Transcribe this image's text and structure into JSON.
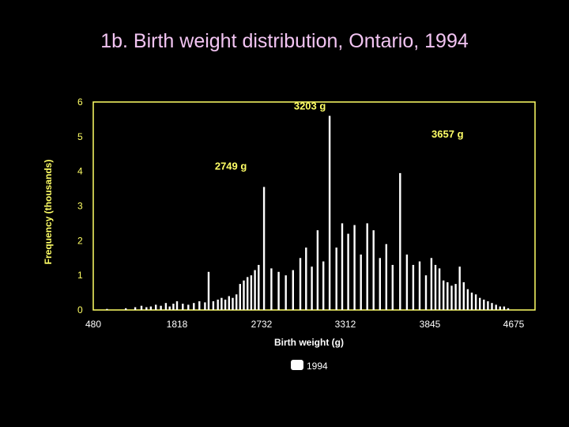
{
  "slide": {
    "title": "1b. Birth weight distribution, Ontario, 1994"
  },
  "colors": {
    "background": "#000000",
    "frame": "#ffff66",
    "text_yellow": "#ffff66",
    "bar": "#ffffff",
    "title": "#f2c4f2"
  },
  "chart_data": {
    "type": "bar",
    "title": "1b. Birth weight distribution, Ontario, 1994",
    "xlabel": "Birth weight (g)",
    "ylabel": "Frequency (thousands)",
    "ylim": [
      0,
      6
    ],
    "xlim": [
      480,
      4675
    ],
    "yticks": [
      "0",
      "1",
      "2",
      "3",
      "4",
      "5",
      "6"
    ],
    "xticks": [
      "480",
      "1818",
      "2732",
      "3312",
      "3845",
      "4675"
    ],
    "legend": {
      "position": "bottom",
      "entries": [
        "1994"
      ]
    },
    "annotations": [
      {
        "text": "3203 g",
        "x": 3203,
        "y": 5.55
      },
      {
        "text": "3657 g",
        "x": 3657,
        "y": 4.75
      },
      {
        "text": "2749 g",
        "x": 2749,
        "y": 4.05
      }
    ],
    "series": [
      {
        "name": "1994",
        "x": [
          700,
          1000,
          1150,
          1250,
          1330,
          1400,
          1480,
          1560,
          1640,
          1700,
          1760,
          1818,
          1880,
          1940,
          2000,
          2060,
          2120,
          2160,
          2210,
          2260,
          2300,
          2340,
          2380,
          2420,
          2460,
          2500,
          2540,
          2580,
          2620,
          2660,
          2700,
          2749,
          2800,
          2850,
          2900,
          2950,
          3000,
          3040,
          3080,
          3120,
          3160,
          3203,
          3250,
          3290,
          3330,
          3370,
          3410,
          3450,
          3490,
          3530,
          3570,
          3610,
          3657,
          3700,
          3740,
          3780,
          3820,
          3860,
          3900,
          3940,
          3980,
          4020,
          4060,
          4100,
          4140,
          4180,
          4220,
          4260,
          4300,
          4340,
          4380,
          4420,
          4460,
          4500,
          4540,
          4580,
          4620
        ],
        "y": [
          0.03,
          0.05,
          0.08,
          0.12,
          0.08,
          0.1,
          0.15,
          0.12,
          0.2,
          0.1,
          0.18,
          0.25,
          0.18,
          0.15,
          0.2,
          0.25,
          0.22,
          1.1,
          0.25,
          0.3,
          0.35,
          0.3,
          0.4,
          0.35,
          0.45,
          0.75,
          0.85,
          0.95,
          1.0,
          1.15,
          1.3,
          3.55,
          1.2,
          1.1,
          1.0,
          1.15,
          1.5,
          1.8,
          1.25,
          2.3,
          1.4,
          5.6,
          1.8,
          2.5,
          2.2,
          2.45,
          1.6,
          2.5,
          2.3,
          1.5,
          1.9,
          1.3,
          3.95,
          1.6,
          1.3,
          1.4,
          1.0,
          1.5,
          1.3,
          1.2,
          0.85,
          0.8,
          0.7,
          0.75,
          1.25,
          0.8,
          0.6,
          0.5,
          0.45,
          0.35,
          0.3,
          0.25,
          0.2,
          0.15,
          0.1,
          0.1,
          0.05
        ]
      }
    ]
  }
}
